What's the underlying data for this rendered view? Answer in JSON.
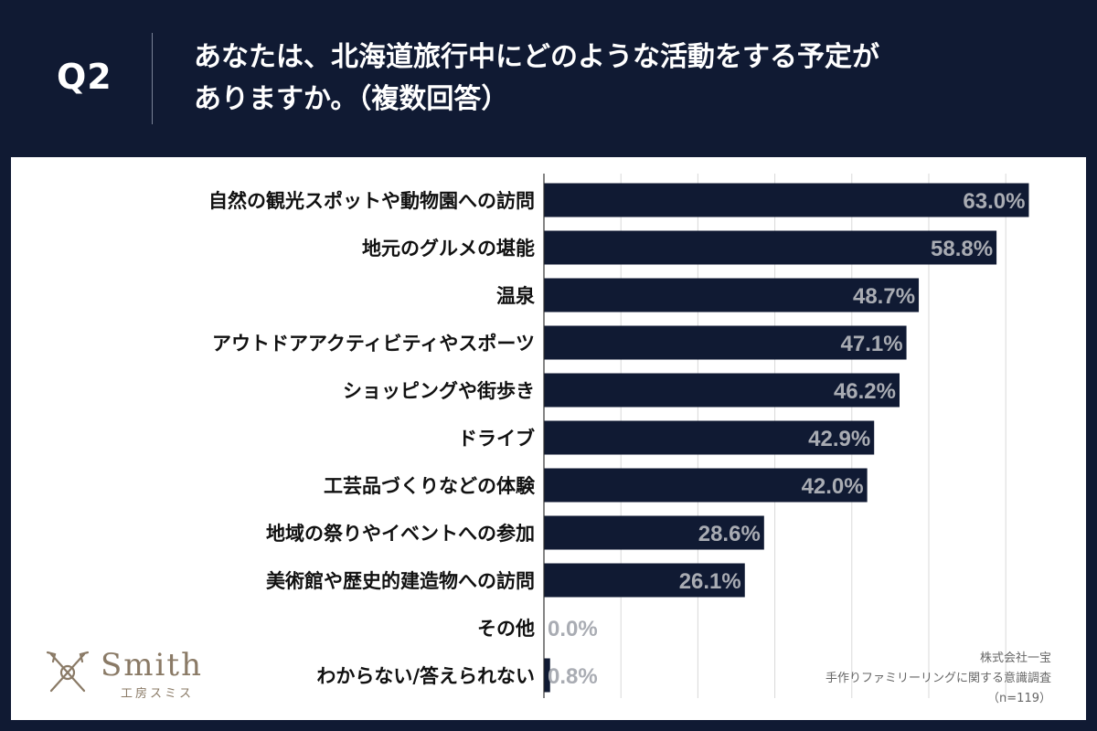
{
  "header": {
    "question_number": "Q2",
    "question_line1": "あなたは、北海道旅行中にどのような活動をする予定が",
    "question_line2": "ありますか。（複数回答）"
  },
  "brand": {
    "logo_word": "Smith",
    "logo_sub": "工房スミス"
  },
  "source": {
    "company": "株式会社一宝",
    "survey": "手作りファミリーリングに関する意識調査",
    "sample": "（n=119）"
  },
  "colors": {
    "background": "#101a33",
    "bar": "#101a33",
    "bar_label": "#a9acb3",
    "panel": "#ffffff"
  },
  "chart_data": {
    "type": "bar",
    "orientation": "horizontal",
    "categories": [
      "自然の観光スポットや動物園への訪問",
      "地元のグルメの堪能",
      "温泉",
      "アウトドアアクティビティやスポーツ",
      "ショッピングや街歩き",
      "ドライブ",
      "工芸品づくりなどの体験",
      "地域の祭りやイベントへの参加",
      "美術館や歴史的建造物への訪問",
      "その他",
      "わからない/答えられない"
    ],
    "values": [
      63.0,
      58.8,
      48.7,
      47.1,
      46.2,
      42.9,
      42.0,
      28.6,
      26.1,
      0.0,
      0.8
    ],
    "value_labels": [
      "63.0%",
      "58.8%",
      "48.7%",
      "47.1%",
      "46.2%",
      "42.9%",
      "42.0%",
      "28.6%",
      "26.1%",
      "0.0%",
      "0.8%"
    ],
    "unit": "%",
    "xlim": [
      0,
      70
    ],
    "grid": true
  }
}
